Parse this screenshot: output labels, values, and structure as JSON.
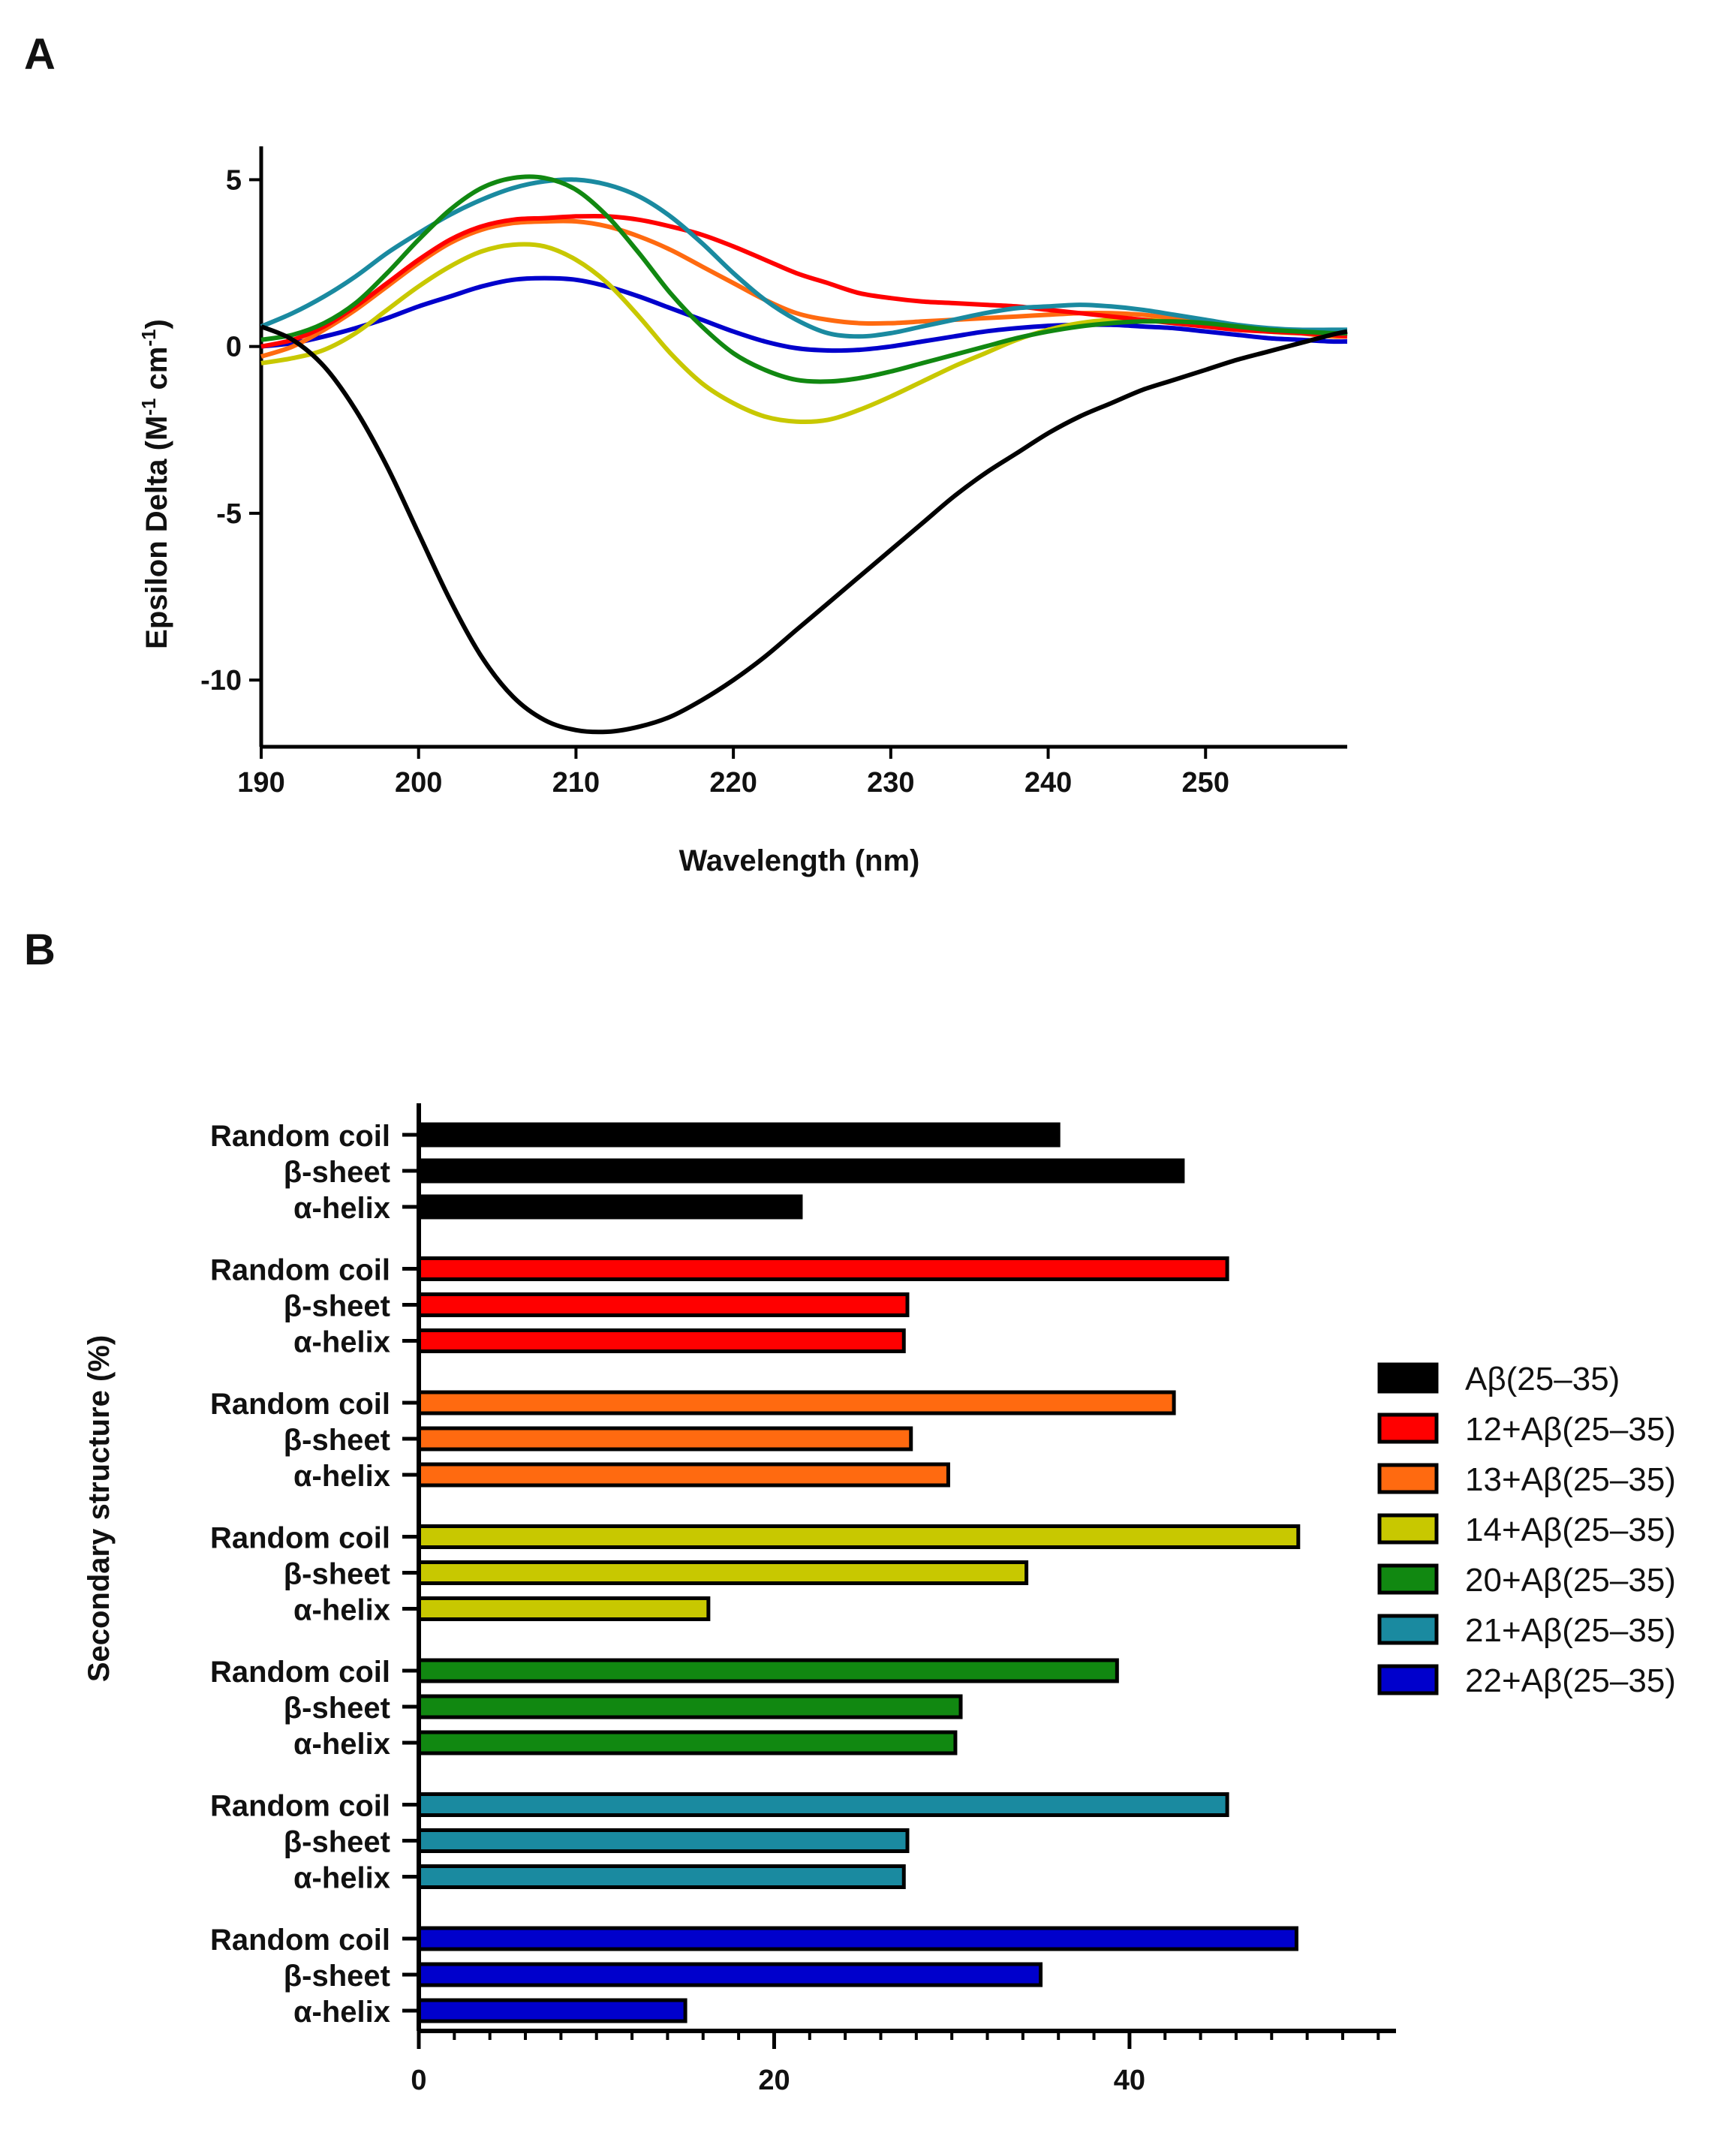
{
  "panels": {
    "a_label": "A",
    "b_label": "B"
  },
  "chart_data": [
    {
      "type": "line",
      "panel": "A",
      "xlabel": "Wavelength (nm)",
      "ylabel_main": "Epsilon Delta (M",
      "ylabel_sup1": "-1",
      "ylabel_mid": " cm",
      "ylabel_sup2": "-1",
      "ylabel_end": ")",
      "xlim": [
        190,
        259
      ],
      "ylim": [
        -12,
        6
      ],
      "x_ticks": [
        190,
        200,
        210,
        220,
        230,
        240,
        250
      ],
      "x_tick_labels": [
        "190",
        "200",
        "210",
        "220",
        "230",
        "240",
        "250"
      ],
      "y_ticks": [
        5,
        0,
        -5,
        -10
      ],
      "y_tick_labels": [
        "5",
        "0",
        "-5",
        "-10"
      ],
      "x": [
        190,
        192,
        194,
        196,
        198,
        200,
        202,
        204,
        206,
        208,
        210,
        212,
        214,
        216,
        218,
        220,
        222,
        224,
        226,
        228,
        230,
        232,
        234,
        236,
        238,
        240,
        242,
        244,
        246,
        248,
        250,
        252,
        254,
        256,
        258,
        259
      ],
      "series": [
        {
          "name": "Aβ(25–35)",
          "color": "#000000",
          "values": [
            0.6,
            0.2,
            -0.6,
            -1.9,
            -3.6,
            -5.6,
            -7.6,
            -9.3,
            -10.5,
            -11.2,
            -11.5,
            -11.55,
            -11.4,
            -11.1,
            -10.6,
            -10.0,
            -9.3,
            -8.5,
            -7.7,
            -6.9,
            -6.1,
            -5.3,
            -4.5,
            -3.8,
            -3.2,
            -2.6,
            -2.1,
            -1.7,
            -1.3,
            -1.0,
            -0.7,
            -0.4,
            -0.15,
            0.1,
            0.35,
            0.45
          ]
        },
        {
          "name": "12+Aβ(25–35)",
          "color": "#ff0000",
          "values": [
            0.0,
            0.2,
            0.6,
            1.2,
            1.9,
            2.6,
            3.2,
            3.6,
            3.8,
            3.85,
            3.9,
            3.9,
            3.8,
            3.6,
            3.35,
            3.0,
            2.6,
            2.2,
            1.9,
            1.6,
            1.45,
            1.35,
            1.3,
            1.25,
            1.2,
            1.1,
            1.0,
            0.9,
            0.8,
            0.7,
            0.6,
            0.5,
            0.45,
            0.4,
            0.35,
            0.3
          ]
        },
        {
          "name": "13+Aβ(25–35)",
          "color": "#ff6a10",
          "values": [
            -0.3,
            0.0,
            0.5,
            1.1,
            1.8,
            2.5,
            3.1,
            3.5,
            3.7,
            3.75,
            3.75,
            3.6,
            3.3,
            2.9,
            2.4,
            1.9,
            1.4,
            1.0,
            0.8,
            0.7,
            0.7,
            0.75,
            0.8,
            0.85,
            0.9,
            0.95,
            1.0,
            1.0,
            0.95,
            0.85,
            0.75,
            0.6,
            0.5,
            0.4,
            0.3,
            0.3
          ]
        },
        {
          "name": "14+Aβ(25–35)",
          "color": "#c8c800",
          "values": [
            -0.5,
            -0.35,
            -0.1,
            0.4,
            1.1,
            1.8,
            2.4,
            2.85,
            3.05,
            3.0,
            2.6,
            1.9,
            0.9,
            -0.2,
            -1.1,
            -1.7,
            -2.1,
            -2.25,
            -2.2,
            -1.9,
            -1.5,
            -1.05,
            -0.6,
            -0.2,
            0.2,
            0.5,
            0.7,
            0.8,
            0.8,
            0.75,
            0.65,
            0.55,
            0.45,
            0.4,
            0.4,
            0.4
          ]
        },
        {
          "name": "20+Aβ(25–35)",
          "color": "#118811",
          "values": [
            0.2,
            0.35,
            0.7,
            1.3,
            2.2,
            3.2,
            4.1,
            4.75,
            5.05,
            5.05,
            4.7,
            3.9,
            2.8,
            1.6,
            0.6,
            -0.2,
            -0.7,
            -1.0,
            -1.05,
            -0.95,
            -0.75,
            -0.5,
            -0.25,
            0.0,
            0.25,
            0.45,
            0.6,
            0.7,
            0.75,
            0.75,
            0.7,
            0.6,
            0.5,
            0.45,
            0.4,
            0.4
          ]
        },
        {
          "name": "21+Aβ(25–35)",
          "color": "#1a8aa0",
          "values": [
            0.6,
            1.0,
            1.5,
            2.1,
            2.8,
            3.4,
            3.95,
            4.4,
            4.75,
            4.95,
            5.0,
            4.85,
            4.5,
            3.9,
            3.1,
            2.2,
            1.4,
            0.8,
            0.4,
            0.3,
            0.4,
            0.6,
            0.8,
            1.0,
            1.15,
            1.2,
            1.25,
            1.2,
            1.1,
            0.95,
            0.8,
            0.65,
            0.55,
            0.5,
            0.5,
            0.5
          ]
        },
        {
          "name": "22+Aβ(25–35)",
          "color": "#0000cc",
          "values": [
            0.0,
            0.1,
            0.3,
            0.55,
            0.85,
            1.2,
            1.5,
            1.8,
            2.0,
            2.05,
            2.0,
            1.8,
            1.5,
            1.15,
            0.8,
            0.45,
            0.15,
            -0.05,
            -0.12,
            -0.1,
            0.0,
            0.15,
            0.3,
            0.45,
            0.55,
            0.62,
            0.65,
            0.65,
            0.6,
            0.55,
            0.45,
            0.35,
            0.25,
            0.2,
            0.15,
            0.15
          ]
        }
      ]
    },
    {
      "type": "bar",
      "orientation": "horizontal",
      "panel": "B",
      "ylabel": "Secondary structure (%)",
      "xlim": [
        0,
        55
      ],
      "x_ticks": [
        0,
        20,
        40
      ],
      "x_tick_labels": [
        "0",
        "20",
        "40"
      ],
      "category_labels": [
        "Random coil",
        "β-sheet",
        "α-helix"
      ],
      "legend_position": "right",
      "groups": [
        {
          "name": "Aβ(25–35)",
          "color": "#000000",
          "values": [
            36,
            43,
            21.5
          ]
        },
        {
          "name": "12+Aβ(25–35)",
          "color": "#ff0000",
          "values": [
            45.5,
            27.5,
            27.3
          ]
        },
        {
          "name": "13+Aβ(25–35)",
          "color": "#ff6a10",
          "values": [
            42.5,
            27.7,
            29.8
          ]
        },
        {
          "name": "14+Aβ(25–35)",
          "color": "#c8c800",
          "values": [
            49.5,
            34.2,
            16.3
          ]
        },
        {
          "name": "20+Aβ(25–35)",
          "color": "#118811",
          "values": [
            39.3,
            30.5,
            30.2
          ]
        },
        {
          "name": "21+Aβ(25–35)",
          "color": "#1a8aa0",
          "values": [
            45.5,
            27.5,
            27.3
          ]
        },
        {
          "name": "22+Aβ(25–35)",
          "color": "#0000cc",
          "values": [
            49.4,
            35.0,
            15.0
          ]
        }
      ]
    }
  ]
}
